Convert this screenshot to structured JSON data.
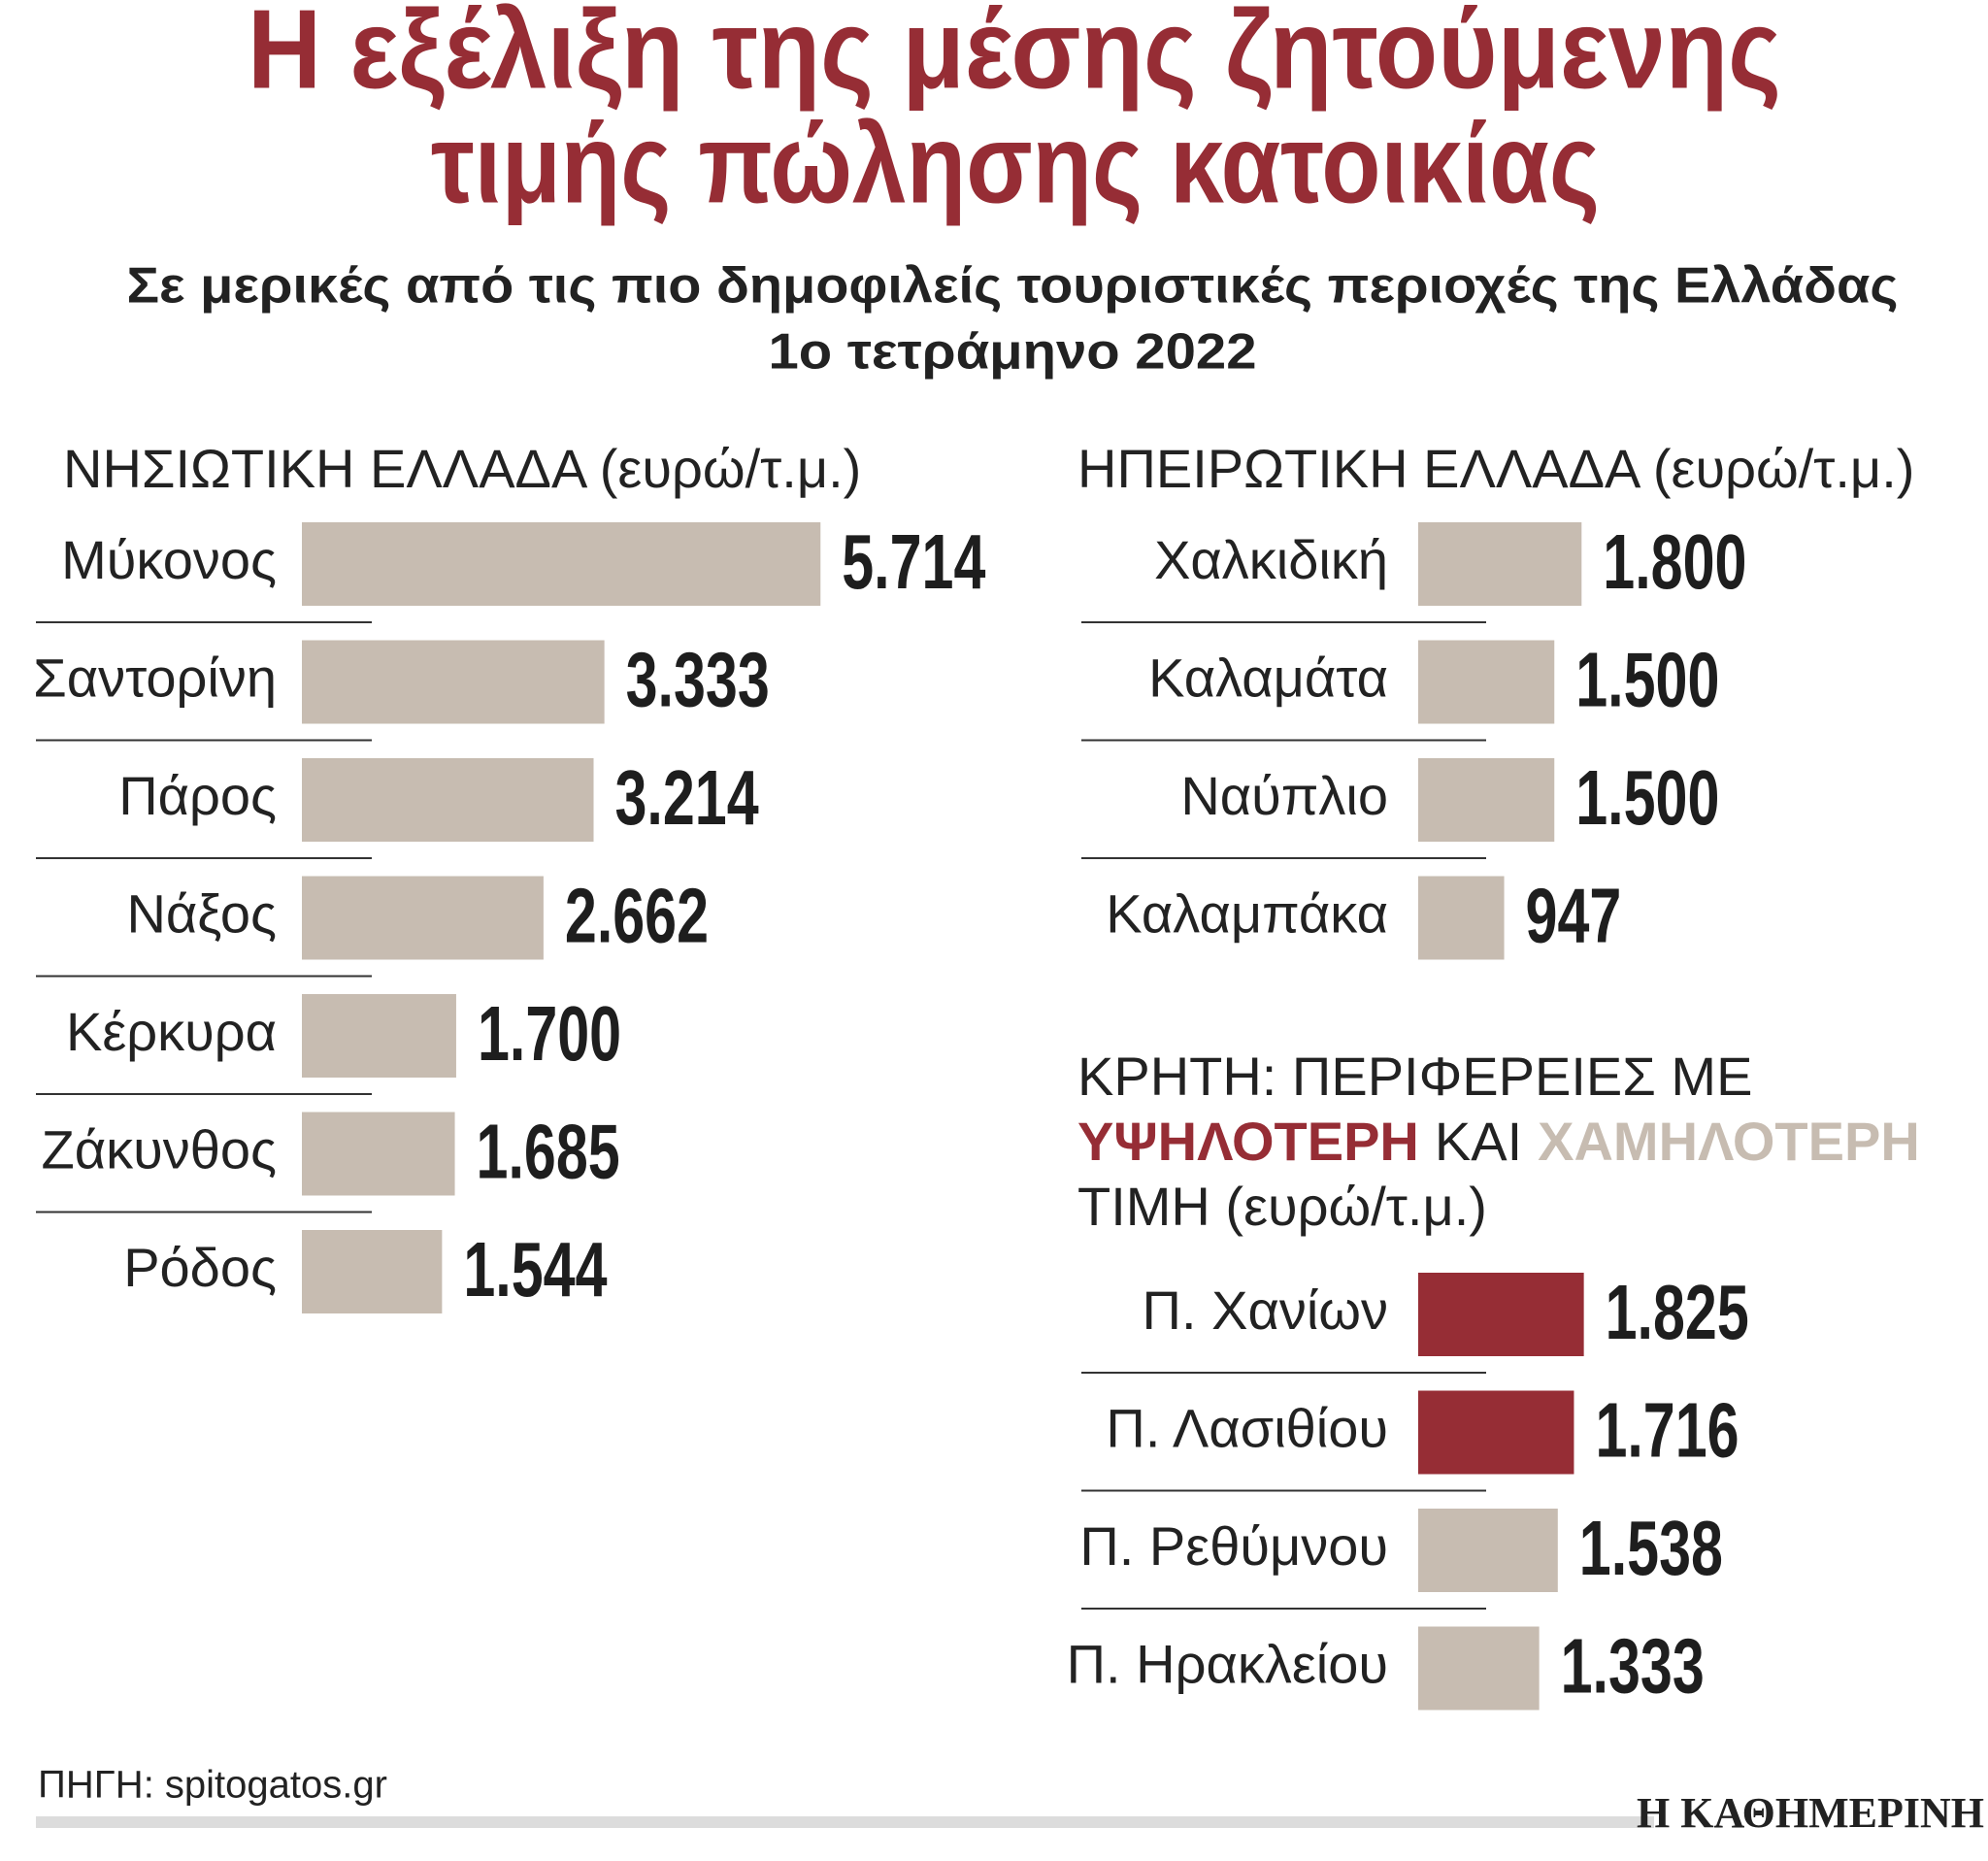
{
  "title": [
    "Η εξέλιξη της μέσης ζητούμενης",
    "τιμής πώλησης κατοικίας"
  ],
  "subtitle": [
    "Σε μερικές από τις πιο δημοφιλείς τουριστικές περιοχές της Ελλάδας",
    "1ο τετράμηνο 2022"
  ],
  "chart_data": [
    {
      "type": "bar",
      "title": "ΝΗΣΙΩΤΙΚΗ ΕΛΛΑΔΑ (ευρώ/τ.μ.)",
      "categories": [
        "Μύκονος",
        "Σαντορίνη",
        "Πάρος",
        "Νάξος",
        "Κέρκυρα",
        "Ζάκυνθος",
        "Ρόδος"
      ],
      "values": [
        5714,
        3333,
        3214,
        2662,
        1700,
        1685,
        1544
      ],
      "value_labels": [
        "5.714",
        "3.333",
        "3.214",
        "2.662",
        "1.700",
        "1.685",
        "1.544"
      ],
      "colors": [
        "#c7bcb1",
        "#c7bcb1",
        "#c7bcb1",
        "#c7bcb1",
        "#c7bcb1",
        "#c7bcb1",
        "#c7bcb1"
      ]
    },
    {
      "type": "bar",
      "title": "ΗΠΕΙΡΩΤΙΚΗ ΕΛΛΑΔΑ (ευρώ/τ.μ.)",
      "categories": [
        "Χαλκιδική",
        "Καλαμάτα",
        "Ναύπλιο",
        "Καλαμπάκα"
      ],
      "values": [
        1800,
        1500,
        1500,
        947
      ],
      "value_labels": [
        "1.800",
        "1.500",
        "1.500",
        "947"
      ],
      "colors": [
        "#c7bcb1",
        "#c7bcb1",
        "#c7bcb1",
        "#c7bcb1"
      ]
    },
    {
      "type": "bar",
      "title_lines": [
        [
          {
            "text": "ΚΡΗΤΗ: ΠΕΡΙΦΕΡΕΙΕΣ ΜΕ"
          }
        ],
        [
          {
            "text": "ΥΨΗΛΟΤΕΡΗ",
            "color": "#962d35"
          },
          {
            "text": "ΚΑΙ"
          },
          {
            "text": "ΧΑΜΗΛΟΤΕΡΗ",
            "color": "#c7bcb1"
          }
        ],
        [
          {
            "text": "ΤΙΜΗ (ευρώ/τ.μ.)"
          }
        ]
      ],
      "categories": [
        "Π. Χανίων",
        "Π. Λασιθίου",
        "Π. Ρεθύμνου",
        "Π. Ηρακλείου"
      ],
      "values": [
        1825,
        1716,
        1538,
        1333
      ],
      "value_labels": [
        "1.825",
        "1.716",
        "1.538",
        "1.333"
      ],
      "colors": [
        "#962d35",
        "#962d35",
        "#c7bcb1",
        "#c7bcb1"
      ]
    }
  ],
  "source": "ΠΗΓΗ: spitogatos.gr",
  "brand": "Η ΚΑΘΗΜΕΡΙΝΗ"
}
